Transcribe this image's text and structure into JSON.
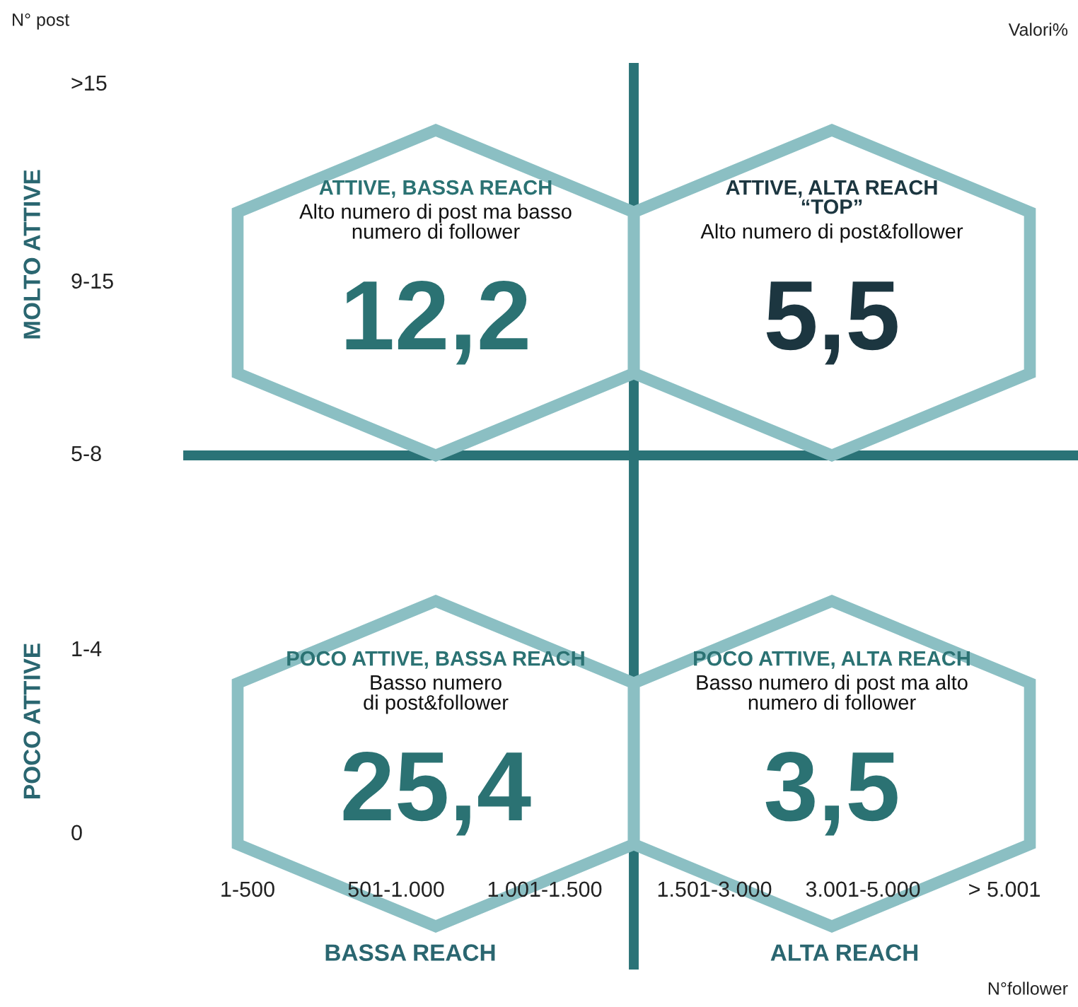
{
  "chart_data": {
    "type": "other",
    "xlabel": "N°follower",
    "ylabel": "N° post",
    "categories": [
      "ATTIVE, BASSA REACH",
      "ATTIVE, ALTA REACH\n“TOP”",
      "POCO ATTIVE, BASSA REACH",
      "POCO ATTIVE, ALTA REACH"
    ],
    "y_categories": [
      ">15",
      "9-15",
      "5-8",
      "1-4",
      "0"
    ],
    "values": [
      12.2,
      5.5,
      25.4,
      3.5
    ],
    "value_labels": [
      "12,2",
      "5,5",
      "25,4",
      "3,5"
    ],
    "colors": [
      "#2b7273",
      "#1c3640",
      "#2b7273",
      "#2b7273"
    ],
    "annotations": [
      "Alto numero di post ma basso\nnumero di follower",
      "Alto numero di post&follower",
      "Basso numero\ndi post&follower",
      "Basso numero di post ma alto\nnumero di follower",
      "1-500",
      "501-1.000",
      "1.001-1.500",
      "1.501-3.000",
      "3.001-5.000",
      "> 5.001",
      "MOLTO ATTIVE",
      "POCO ATTIVE",
      "BASSA REACH",
      "ALTA REACH",
      "Valori%"
    ]
  }
}
